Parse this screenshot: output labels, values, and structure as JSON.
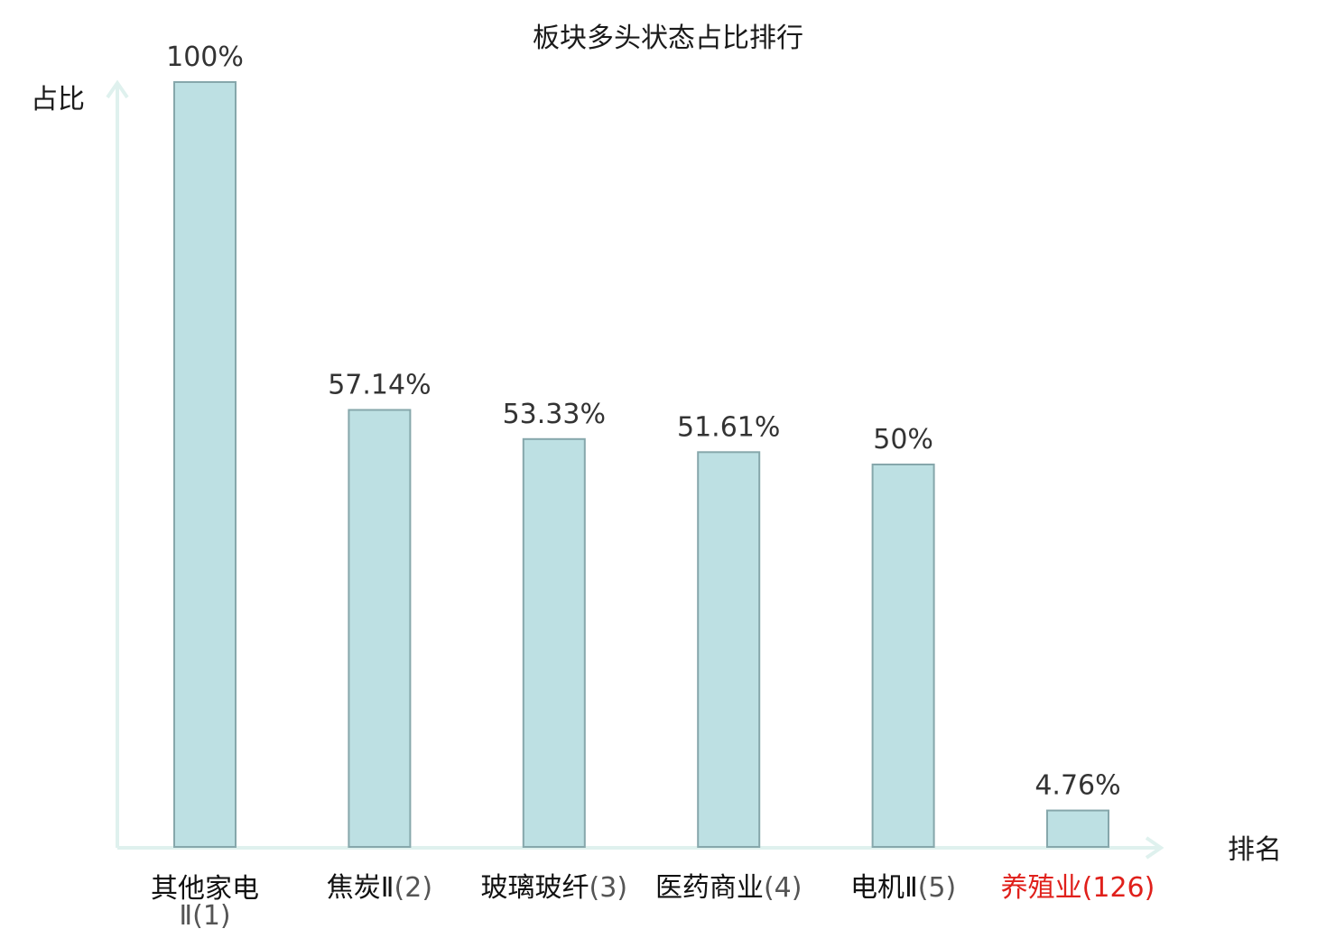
{
  "chart_data": {
    "type": "bar",
    "title": "板块多头状态占比排行",
    "ylabel": "占比",
    "xlabel": "排名",
    "ylim": [
      0,
      100
    ],
    "grid": false,
    "legend": "none",
    "categories": [
      {
        "name": "其他家电Ⅱ",
        "rank": "(1)"
      },
      {
        "name": "焦炭Ⅱ",
        "rank": "(2)"
      },
      {
        "name": "玻璃玻纤",
        "rank": "(3)"
      },
      {
        "name": "医药商业",
        "rank": "(4)"
      },
      {
        "name": "电机Ⅱ",
        "rank": "(5)"
      },
      {
        "name": "养殖业",
        "rank": "(126)"
      }
    ],
    "values": [
      100,
      57.14,
      53.33,
      51.61,
      50,
      4.76
    ],
    "value_labels": [
      "100%",
      "57.14%",
      "53.33%",
      "51.61%",
      "50%",
      "4.76%"
    ],
    "highlight_index": 5,
    "colors": {
      "bar_fill": "#bde0e3",
      "bar_stroke": "#86a7ab",
      "axis": "#dff1ee",
      "highlight_text": "#e0201b",
      "text": "#1a1a1a"
    }
  }
}
